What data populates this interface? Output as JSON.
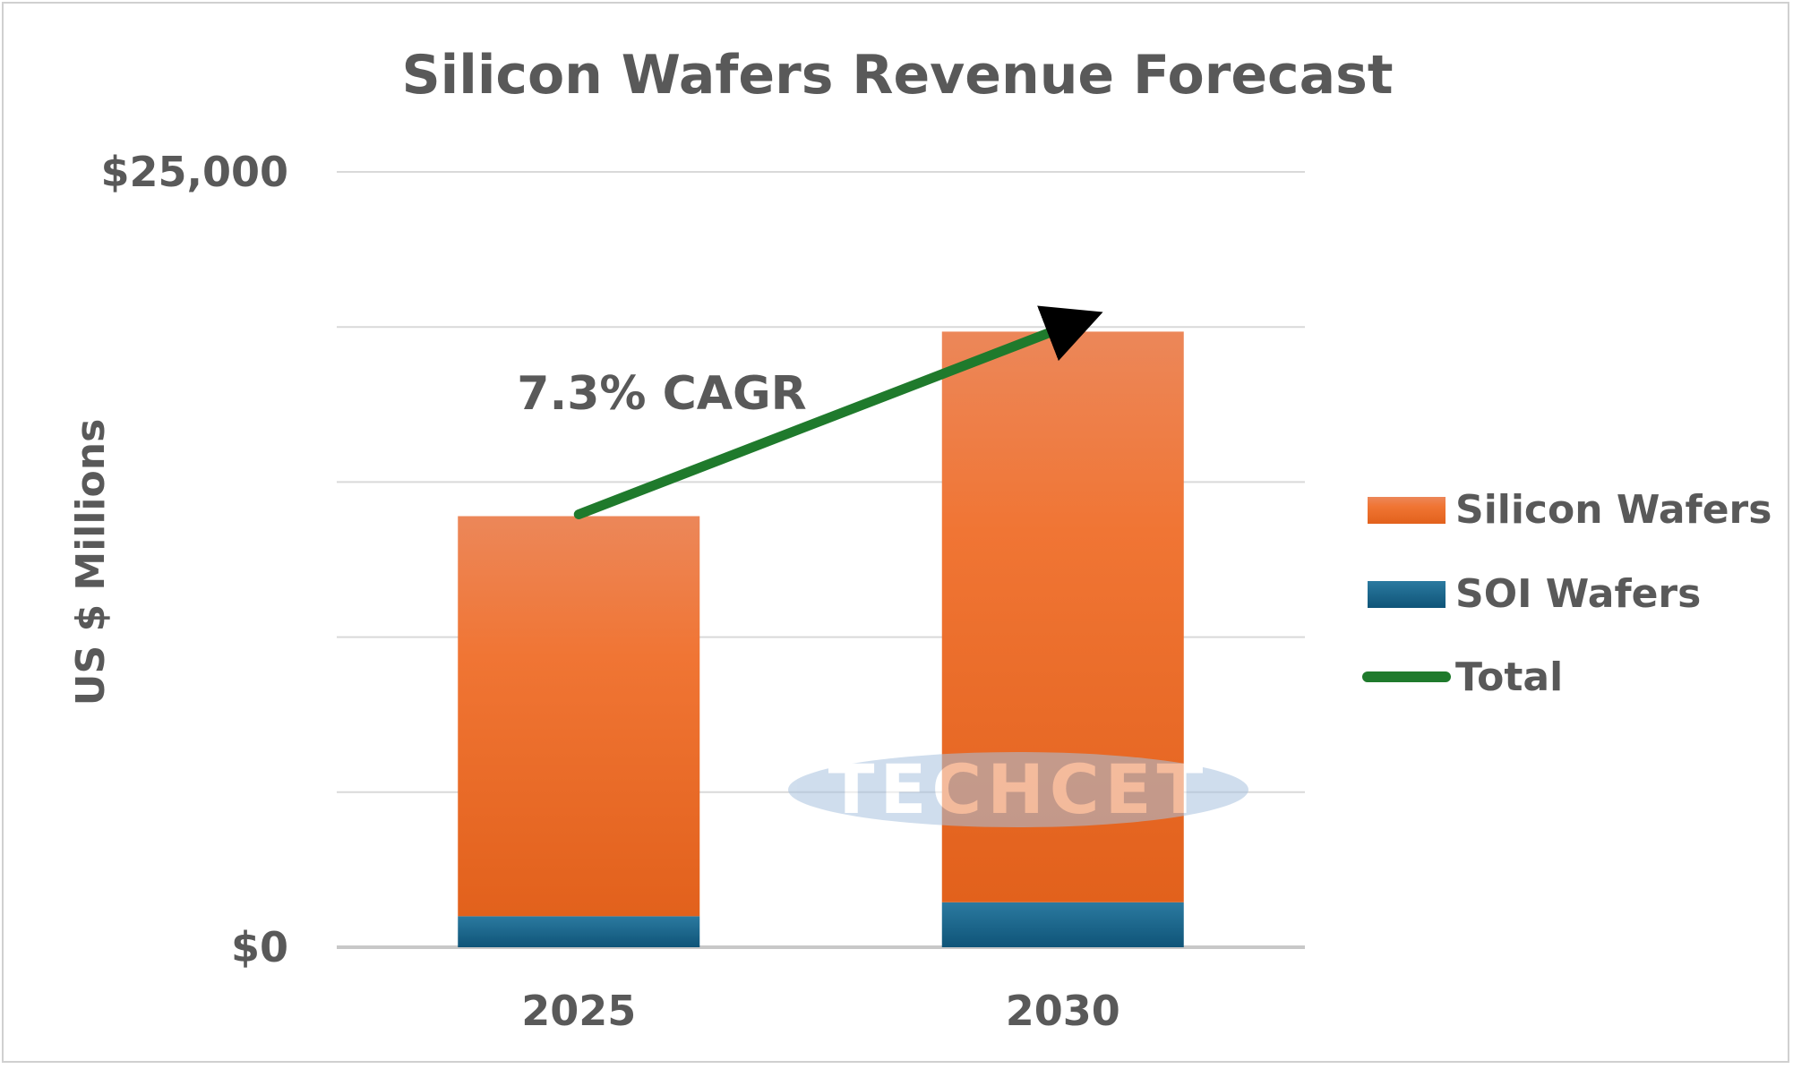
{
  "chart_data": {
    "type": "bar",
    "stacked": true,
    "title": "Silicon Wafers Revenue Forecast",
    "ylabel": "US $ Millions",
    "xlabel": "",
    "categories": [
      "2025",
      "2030"
    ],
    "ylim": [
      0,
      25000
    ],
    "yticks": [
      0,
      5000,
      10000,
      15000,
      20000,
      25000
    ],
    "ytick_labels": [
      "$0",
      "",
      "",
      "",
      "",
      "$25,000"
    ],
    "grid": true,
    "legend_position": "right",
    "series": [
      {
        "name": "SOI Wafers",
        "values": [
          1000,
          1450
        ],
        "color": "#175f87"
      },
      {
        "name": "Silicon Wafers",
        "values": [
          12900,
          18400
        ],
        "color": "#ec6f29"
      }
    ],
    "line_series": {
      "name": "Total",
      "values": [
        13900,
        19850
      ],
      "color": "#1f7a2c"
    },
    "legend": [
      "Silicon Wafers",
      "SOI Wafers",
      "Total"
    ],
    "annotation": "7.3% CAGR",
    "watermark": "TECHCET"
  }
}
